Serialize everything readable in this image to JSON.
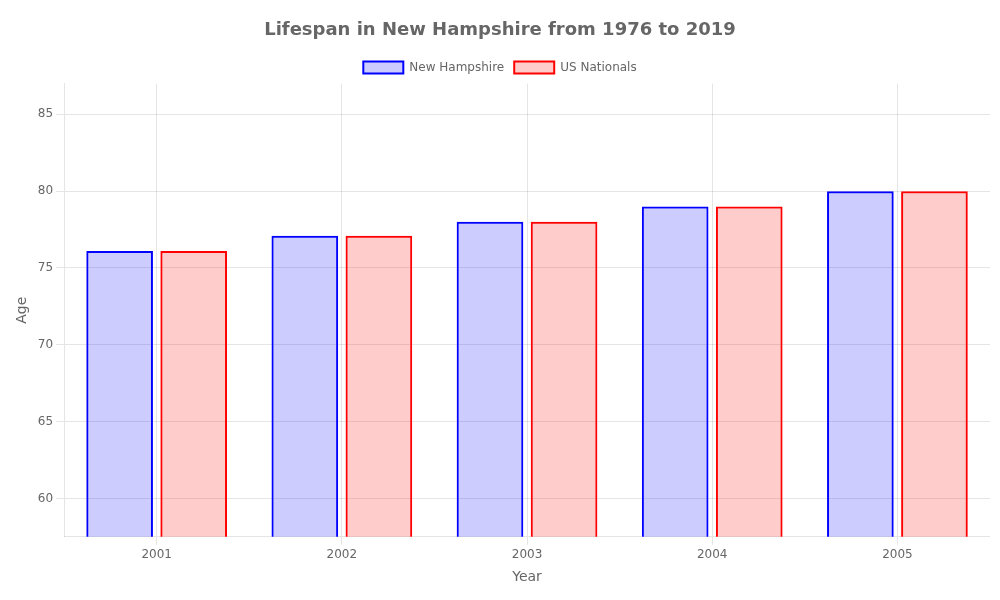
{
  "chart_data": {
    "type": "bar",
    "title": "Lifespan in New Hampshire from 1976 to 2019",
    "xlabel": "Year",
    "ylabel": "Age",
    "categories": [
      2001,
      2002,
      2003,
      2004,
      2005
    ],
    "series": [
      {
        "name": "New Hampshire",
        "color": "#0000ff",
        "values": [
          76.1,
          77.1,
          78.0,
          79.0,
          80.0
        ]
      },
      {
        "name": "US Nationals",
        "color": "#ff0000",
        "values": [
          76.1,
          77.1,
          78.0,
          79.0,
          80.0
        ]
      }
    ],
    "ylim": [
      57.5,
      87
    ],
    "yticks": [
      60,
      65,
      70,
      75,
      80,
      85
    ],
    "grid": true,
    "legend": "top"
  }
}
